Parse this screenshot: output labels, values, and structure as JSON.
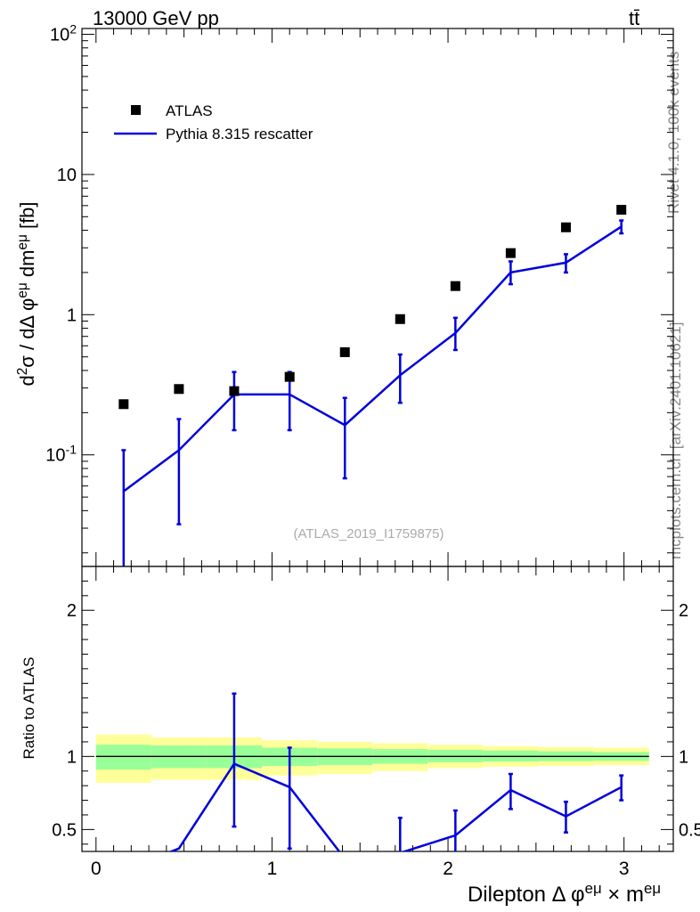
{
  "header": {
    "energy": "13000 GeV pp",
    "process": "tt̄"
  },
  "side": {
    "rivet": "Rivet 4.1.0,  100k events",
    "source": "mcplots.cern.ch [arXiv:2401.10621]"
  },
  "legend": {
    "data": "ATLAS",
    "mc": "Pythia 8.315 rescatter"
  },
  "watermark": "(ATLAS_2019_I1759875)",
  "labels": {
    "ylabel_main": "d²σ / dΔ φ^eμ dm^eμ [fb]",
    "ylabel_ratio": "Ratio to ATLAS",
    "xlabel": "Dilepton Δ φ^eμ × m^eμ"
  },
  "colors": {
    "mc": "#0000dd",
    "band_inner": "#99ff99",
    "band_outer": "#ffff99",
    "data": "#000000"
  },
  "chart_data": [
    {
      "type": "scatter",
      "scale": "log",
      "ylim": [
        0.016,
        110
      ],
      "xlim": [
        -0.08,
        3.28
      ],
      "yticks": [
        {
          "value": 0.1,
          "label": "10^-1"
        },
        {
          "value": 1,
          "label": "1"
        },
        {
          "value": 10,
          "label": "10"
        },
        {
          "value": 100,
          "label": "10^2"
        }
      ],
      "series": [
        {
          "name": "ATLAS",
          "x": [
            0.157,
            0.471,
            0.785,
            1.1,
            1.414,
            1.728,
            2.042,
            2.356,
            2.67,
            2.985
          ],
          "values": [
            0.23,
            0.295,
            0.285,
            0.36,
            0.54,
            0.93,
            1.6,
            2.75,
            4.2,
            5.6
          ]
        },
        {
          "name": "Pythia 8.315 rescatter",
          "x": [
            0.157,
            0.471,
            0.785,
            1.1,
            1.414,
            1.728,
            2.042,
            2.356,
            2.67,
            2.985
          ],
          "values": [
            0.055,
            0.108,
            0.27,
            0.27,
            0.163,
            0.37,
            0.74,
            2.0,
            2.35,
            4.25
          ],
          "err_low": [
            0.012,
            0.032,
            0.15,
            0.15,
            0.068,
            0.235,
            0.56,
            1.65,
            2.0,
            3.8
          ],
          "err_high": [
            0.108,
            0.18,
            0.39,
            0.39,
            0.255,
            0.52,
            0.95,
            2.4,
            2.7,
            4.7
          ]
        }
      ]
    },
    {
      "type": "line",
      "ylim": [
        0.35,
        2.3
      ],
      "yticks": [
        0.5,
        1,
        2
      ],
      "xticks": [
        0,
        1,
        2,
        3
      ],
      "bins": [
        0,
        0.314,
        0.628,
        0.942,
        1.257,
        1.571,
        1.885,
        2.199,
        2.513,
        2.827,
        3.142
      ],
      "band_outer_low": [
        0.82,
        0.84,
        0.84,
        0.87,
        0.88,
        0.9,
        0.92,
        0.93,
        0.935,
        0.94
      ],
      "band_outer_high": [
        1.15,
        1.13,
        1.13,
        1.11,
        1.1,
        1.09,
        1.08,
        1.07,
        1.065,
        1.06
      ],
      "band_inner_low": [
        0.91,
        0.92,
        0.92,
        0.935,
        0.94,
        0.95,
        0.96,
        0.965,
        0.968,
        0.97
      ],
      "band_inner_high": [
        1.08,
        1.075,
        1.075,
        1.06,
        1.055,
        1.05,
        1.045,
        1.04,
        1.035,
        1.03
      ],
      "series": [
        {
          "name": "Pythia 8.315 rescatter / ATLAS",
          "x": [
            0.157,
            0.471,
            0.785,
            1.1,
            1.414,
            1.728,
            2.042,
            2.356,
            2.67,
            2.985
          ],
          "values": [
            0.22,
            0.37,
            0.95,
            0.79,
            0.3,
            0.34,
            0.46,
            0.77,
            0.59,
            0.79
          ],
          "err_low": [
            null,
            null,
            0.52,
            0.37,
            null,
            0.1,
            0.3,
            0.64,
            0.48,
            0.7
          ],
          "err_high": [
            null,
            null,
            1.43,
            1.06,
            null,
            0.58,
            0.63,
            0.88,
            0.69,
            0.87
          ]
        }
      ]
    }
  ]
}
